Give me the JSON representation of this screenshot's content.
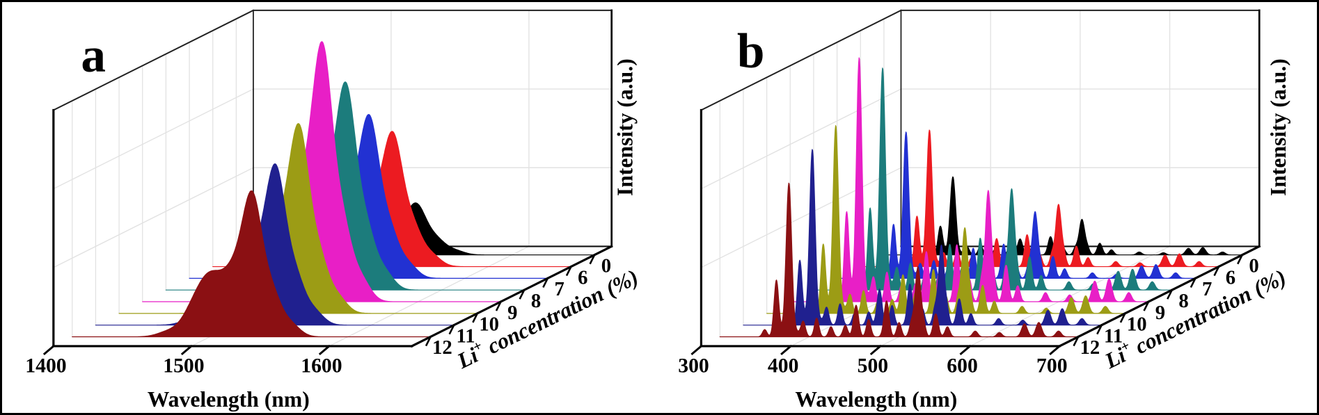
{
  "figure": {
    "kind": "two-panel 3D waterfall spectra figure",
    "background": "#ffffff",
    "border_color": "#000000",
    "grid_color": "#e2e2e2",
    "axis_color": "#000000",
    "panel_letters": [
      "a",
      "b"
    ]
  },
  "chart_data": [
    {
      "type": "area",
      "projection": "3d-waterfall",
      "title": "a",
      "xlabel": "Wavelength (nm)",
      "ylabel": "Intensity (a.u.)",
      "zlabel": "Li+ concentration (%)",
      "zlabel_parts": {
        "pre": "Li",
        "sup": "+",
        "post": " concentration (%)"
      },
      "x_range": [
        1400,
        1660
      ],
      "x_ticks": [
        "1400",
        "1500",
        "1600"
      ],
      "x_tick_values": [
        1400,
        1500,
        1600
      ],
      "z_tick_labels": [
        "12",
        "11",
        "10",
        "9",
        "8",
        "7",
        "6",
        "0"
      ],
      "li_concentration_values": [
        12,
        11,
        10,
        9,
        8,
        7,
        6,
        0
      ],
      "series_order": "front-to-back",
      "grid": true,
      "ylim_note": "arbitrary units, heights relative to 9% series (max = 1.0)",
      "profile_peaks": [
        [
          1531,
          1.0,
          7.0
        ],
        [
          1518,
          0.42,
          8.0
        ],
        [
          1501,
          0.3,
          9.0
        ],
        [
          1487,
          0.13,
          8.0
        ],
        [
          1470,
          0.04,
          8.0
        ],
        [
          1545,
          0.3,
          6.5
        ],
        [
          1558,
          0.1,
          7.0
        ]
      ],
      "series": [
        {
          "li_percent": "12",
          "color": "#8B1013",
          "relative_peak_intensity": 0.56,
          "extra_peaks": [
            [
              1499,
              0.15,
              11
            ]
          ]
        },
        {
          "li_percent": "11",
          "color": "#20208F",
          "relative_peak_intensity": 0.62,
          "extra_peaks": []
        },
        {
          "li_percent": "10",
          "color": "#9C9C15",
          "relative_peak_intensity": 0.73,
          "extra_peaks": []
        },
        {
          "li_percent": "9",
          "color": "#E81FC6",
          "relative_peak_intensity": 1.0,
          "extra_peaks": []
        },
        {
          "li_percent": "8",
          "color": "#1C7C7C",
          "relative_peak_intensity": 0.8,
          "extra_peaks": []
        },
        {
          "li_percent": "7",
          "color": "#2231D2",
          "relative_peak_intensity": 0.63,
          "extra_peaks": []
        },
        {
          "li_percent": "6",
          "color": "#EC1B21",
          "relative_peak_intensity": 0.52,
          "extra_peaks": []
        },
        {
          "li_percent": "0",
          "color": "#000000",
          "relative_peak_intensity": 0.2,
          "extra_peaks": []
        }
      ]
    },
    {
      "type": "area",
      "projection": "3d-waterfall",
      "title": "b",
      "xlabel": "Wavelength (nm)",
      "ylabel": "Intensity (a.u.)",
      "zlabel": "Li+ concentration (%)",
      "zlabel_parts": {
        "pre": "Li",
        "sup": "+",
        "post": " concentration (%)"
      },
      "x_range": [
        300,
        700
      ],
      "x_ticks": [
        "300",
        "400",
        "500",
        "600",
        "700"
      ],
      "x_tick_values": [
        300,
        400,
        500,
        600,
        700
      ],
      "z_tick_labels": [
        "12",
        "11",
        "10",
        "9",
        "8",
        "7",
        "6",
        "0"
      ],
      "li_concentration_values": [
        12,
        11,
        10,
        9,
        8,
        7,
        6,
        0
      ],
      "series_order": "front-to-back",
      "grid": true,
      "ylim_note": "arbitrary units, heights relative to 9% series (max = 1.0)",
      "profile_peaks": [
        [
          350,
          0.05,
          2.5
        ],
        [
          363,
          0.38,
          2.6
        ],
        [
          377,
          1.0,
          3.0
        ],
        [
          377,
          0.07,
          8.0
        ],
        [
          393,
          0.1,
          2.5
        ],
        [
          408,
          0.13,
          2.5
        ],
        [
          424,
          0.07,
          2.5
        ],
        [
          440,
          0.08,
          2.6
        ],
        [
          452,
          0.22,
          2.8
        ],
        [
          466,
          0.12,
          2.5
        ],
        [
          486,
          0.25,
          2.8
        ],
        [
          500,
          0.1,
          2.5
        ],
        [
          514,
          0.1,
          2.5
        ],
        [
          521,
          0.48,
          3.0
        ],
        [
          527,
          0.1,
          2.5
        ],
        [
          541,
          0.16,
          2.8
        ],
        [
          554,
          0.07,
          2.6
        ],
        [
          585,
          0.04,
          2.8
        ],
        [
          612,
          0.03,
          2.8
        ],
        [
          640,
          0.09,
          3.2
        ],
        [
          656,
          0.1,
          3.2
        ],
        [
          678,
          0.04,
          3.0
        ]
      ],
      "series": [
        {
          "li_percent": "12",
          "color": "#8B1013",
          "relative_peak_intensity": 0.63,
          "extra_peaks": []
        },
        {
          "li_percent": "11",
          "color": "#20208F",
          "relative_peak_intensity": 0.72,
          "extra_peaks": []
        },
        {
          "li_percent": "10",
          "color": "#9C9C15",
          "relative_peak_intensity": 0.77,
          "extra_peaks": []
        },
        {
          "li_percent": "9",
          "color": "#E81FC6",
          "relative_peak_intensity": 1.0,
          "extra_peaks": []
        },
        {
          "li_percent": "8",
          "color": "#1C7C7C",
          "relative_peak_intensity": 0.91,
          "extra_peaks": []
        },
        {
          "li_percent": "7",
          "color": "#2231D2",
          "relative_peak_intensity": 0.6,
          "extra_peaks": []
        },
        {
          "li_percent": "6",
          "color": "#EC1B21",
          "relative_peak_intensity": 0.56,
          "extra_peaks": []
        },
        {
          "li_percent": "0",
          "color": "#000000",
          "relative_peak_intensity": 0.32,
          "extra_peaks": []
        }
      ]
    }
  ]
}
